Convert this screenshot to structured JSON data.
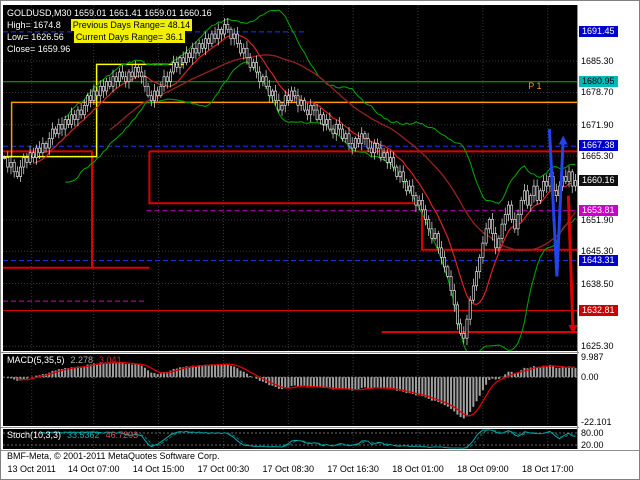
{
  "header": {
    "symbol_line": "GOLDUSD,M30 1659.01 1661.41 1659.01 1660.16",
    "high": "High= 1674.8",
    "prev_range": "Previous Days Range= 48.14",
    "low": "Low= 1626.56",
    "curr_range": "Current Days Range= 36.1",
    "close": "Close= 1659.96"
  },
  "footer": {
    "copyright": "BMF-Meta, © 2001-2011 MetaQuotes Software Corp."
  },
  "chart_data": {
    "type": "candlestick",
    "title": "GOLDUSD,M30",
    "symbol": "GOLDUSD",
    "timeframe": "M30",
    "quote": {
      "open": 1659.01,
      "high": 1661.41,
      "low": 1659.01,
      "close": 1660.16
    },
    "day_stats": {
      "high": 1674.8,
      "low": 1626.56,
      "close": 1659.96,
      "prev_days_range": 48.14,
      "curr_days_range": 36.1
    },
    "y_range": [
      1624.3,
      1697.1
    ],
    "y_ticks": [
      1685.3,
      1678.7,
      1671.9,
      1665.3,
      1651.9,
      1645.3,
      1638.5,
      1625.3
    ],
    "price_tags": [
      {
        "price": 1691.45,
        "bg": "#0000cc",
        "fg": "#ffffff"
      },
      {
        "price": 1680.95,
        "bg": "#00b8b8",
        "fg": "#000000"
      },
      {
        "price": 1667.38,
        "bg": "#0000cc",
        "fg": "#ffffff"
      },
      {
        "price": 1660.16,
        "bg": "#101010",
        "fg": "#ffffff"
      },
      {
        "price": 1653.81,
        "bg": "#cc00cc",
        "fg": "#ffffff"
      },
      {
        "price": 1643.31,
        "bg": "#0000cc",
        "fg": "#ffffff"
      },
      {
        "price": 1632.81,
        "bg": "#cc0000",
        "fg": "#ffffff"
      }
    ],
    "x_labels": [
      {
        "fx": 0.05,
        "label": "13 Oct 2011"
      },
      {
        "fx": 0.158,
        "label": "14 Oct 07:00"
      },
      {
        "fx": 0.271,
        "label": "14 Oct 15:00"
      },
      {
        "fx": 0.384,
        "label": "17 Oct 00:30"
      },
      {
        "fx": 0.497,
        "label": "17 Oct 08:30"
      },
      {
        "fx": 0.61,
        "label": "17 Oct 16:30"
      },
      {
        "fx": 0.723,
        "label": "18 Oct 01:00"
      },
      {
        "fx": 0.836,
        "label": "18 Oct 09:00"
      },
      {
        "fx": 0.949,
        "label": "18 Oct 17:00"
      }
    ],
    "closes": [
      1665,
      1663,
      1664,
      1662,
      1661,
      1663,
      1665,
      1664,
      1666,
      1665,
      1667,
      1666,
      1668,
      1667,
      1669,
      1671,
      1670,
      1672,
      1671,
      1673,
      1672,
      1674,
      1673,
      1675,
      1674,
      1676,
      1678,
      1677,
      1679,
      1678,
      1680,
      1679,
      1681,
      1680,
      1682,
      1681,
      1683,
      1682,
      1681,
      1683,
      1682,
      1684,
      1683,
      1682,
      1680,
      1678,
      1677,
      1679,
      1678,
      1680,
      1682,
      1681,
      1683,
      1685,
      1684,
      1686,
      1685,
      1687,
      1686,
      1688,
      1687,
      1689,
      1688,
      1690,
      1689,
      1691,
      1690,
      1692,
      1691,
      1693,
      1692,
      1690,
      1691,
      1689,
      1687,
      1688,
      1686,
      1684,
      1685,
      1683,
      1681,
      1682,
      1680,
      1678,
      1679,
      1677,
      1675,
      1676,
      1678,
      1677,
      1679,
      1678,
      1676,
      1677,
      1675,
      1674,
      1676,
      1675,
      1673,
      1674,
      1672,
      1673,
      1671,
      1670,
      1672,
      1671,
      1669,
      1670,
      1668,
      1667,
      1669,
      1668,
      1670,
      1669,
      1667,
      1666,
      1668,
      1667,
      1665,
      1666,
      1664,
      1665,
      1663,
      1661,
      1662,
      1660,
      1658,
      1659,
      1657,
      1655,
      1656,
      1654,
      1652,
      1650,
      1648,
      1649,
      1646,
      1644,
      1642,
      1640,
      1637,
      1634,
      1630,
      1628,
      1627,
      1631,
      1635,
      1638,
      1641,
      1644,
      1647,
      1650,
      1652,
      1649,
      1646,
      1648,
      1651,
      1653,
      1655,
      1652,
      1650,
      1653,
      1656,
      1658,
      1655,
      1657,
      1659,
      1656,
      1658,
      1660,
      1659,
      1661,
      1658,
      1657,
      1659,
      1661,
      1660,
      1662,
      1659,
      1660.16
    ],
    "indicators": {
      "bollinger": {
        "period": 20,
        "deviation": 2,
        "color": "#00a000"
      },
      "ma_fast": {
        "period": 10,
        "color": "#dd2222"
      },
      "ma_slow": {
        "period": 34,
        "color": "#902020"
      },
      "macd": {
        "label": "MACD(5,35,5)",
        "value": 2.278,
        "signal": 3.041,
        "fast": 5,
        "slow": 35,
        "smooth": 5,
        "range": [
          -23.9,
          11.3
        ],
        "scale": [
          {
            "v": 9.987,
            "label": "9.987"
          },
          {
            "v": 0,
            "label": "0.00"
          },
          {
            "v": -22.101,
            "label": "-22.101"
          }
        ],
        "hist_color": "#a0a0a0",
        "signal_color": "#dd0000"
      },
      "stoch": {
        "label": "Stoch(10,3,3)",
        "k": "33.5362",
        "d": "46.7203",
        "period": 10,
        "slowing": 3,
        "d_period": 3,
        "scale": [
          {
            "v": 80,
            "label": "80.00"
          },
          {
            "v": 20,
            "label": "20.00"
          }
        ],
        "main_color": "#00b0b0",
        "signal_color": "#007878"
      }
    },
    "levels": [
      {
        "price": 1691.45,
        "color": "#2233ff",
        "style": "dash",
        "x1": 0,
        "x2": 0.53
      },
      {
        "price": 1680.95,
        "color": "#00bb00",
        "style": "solid",
        "x1": 0,
        "x2": 1
      },
      {
        "price": 1667.38,
        "color": "#2233ff",
        "style": "dash",
        "x1": 0,
        "x2": 1
      },
      {
        "price": 1653.81,
        "color": "#cc00cc",
        "style": "dash",
        "x1": 0.25,
        "x2": 1
      },
      {
        "price": 1634.8,
        "color": "#cc00cc",
        "style": "dash",
        "x1": 0,
        "x2": 0.25
      },
      {
        "price": 1643.31,
        "color": "#2233ff",
        "style": "dash",
        "x1": 0,
        "x2": 1
      },
      {
        "price": 1632.81,
        "color": "#dd0000",
        "style": "solid",
        "x1": 0,
        "x2": 1
      }
    ],
    "step_lines": {
      "color": "#dd0000",
      "width": 2,
      "paths": [
        [
          [
            0.0,
            1666.3
          ],
          [
            0.155,
            1666.3
          ],
          [
            0.155,
            1641.8
          ]
        ],
        [
          [
            0.0,
            1641.8
          ],
          [
            0.255,
            1641.8
          ]
        ],
        [
          [
            0.255,
            1666.3
          ],
          [
            0.255,
            1655.4
          ],
          [
            0.73,
            1655.4
          ],
          [
            0.73,
            1645.6
          ],
          [
            1.0,
            1645.6
          ]
        ],
        [
          [
            0.255,
            1666.3
          ],
          [
            1.0,
            1666.3
          ]
        ],
        [
          [
            0.66,
            1628.3
          ],
          [
            1.0,
            1628.3
          ]
        ]
      ]
    },
    "overlay_polylines": [
      {
        "name": "pivot-line-orange",
        "color": "#ff9900",
        "width": 1.5,
        "points": [
          [
            0.015,
            1665.0
          ],
          [
            0.015,
            1676.6
          ],
          [
            1.0,
            1676.6
          ]
        ]
      },
      {
        "name": "range-line-yellow",
        "color": "#ffff00",
        "width": 1.5,
        "points": [
          [
            0.0,
            1665.2
          ],
          [
            0.163,
            1665.2
          ],
          [
            0.163,
            1684.6
          ],
          [
            0.315,
            1684.6
          ]
        ]
      }
    ],
    "annotations": [
      {
        "text": "P 1",
        "fx": 0.915,
        "price": 1679.4,
        "color": "#ff9900"
      }
    ],
    "arrows": [
      {
        "name": "trend-arrow-up",
        "color": "#2244ee",
        "width": 3,
        "head": "up",
        "points": [
          [
            0.952,
            1671
          ],
          [
            0.965,
            1640
          ],
          [
            0.976,
            1669
          ]
        ]
      },
      {
        "name": "trend-arrow-down",
        "color": "#dd0000",
        "width": 3,
        "head": "down",
        "points": [
          [
            0.985,
            1657
          ],
          [
            0.993,
            1628.5
          ]
        ]
      }
    ]
  }
}
